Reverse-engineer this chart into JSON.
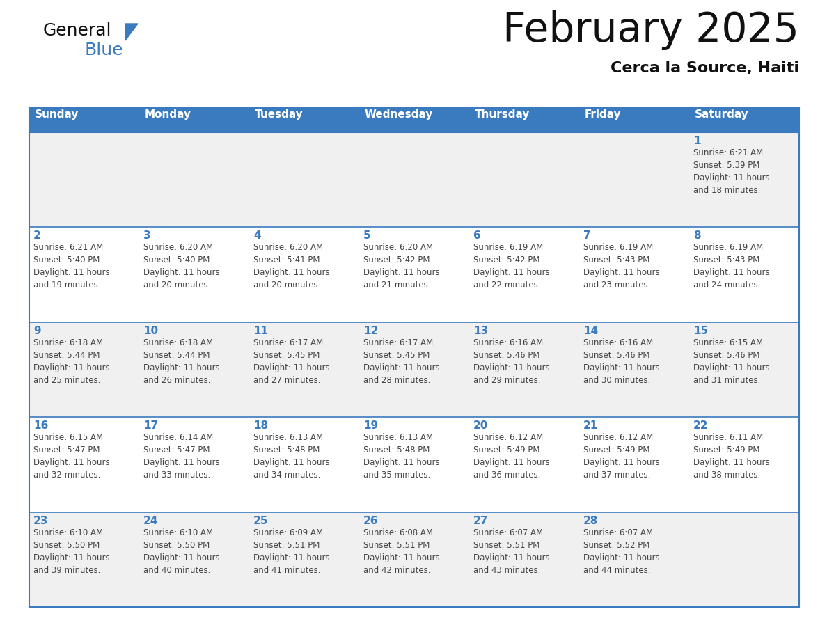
{
  "title": "February 2025",
  "subtitle": "Cerca la Source, Haiti",
  "header_bg_color": "#3a7bbf",
  "header_text_color": "#ffffff",
  "cell_bg_odd": "#f0f0f0",
  "cell_bg_even": "#ffffff",
  "day_number_color": "#3a7bbf",
  "text_color": "#444444",
  "border_color": "#3a7bbf",
  "days_of_week": [
    "Sunday",
    "Monday",
    "Tuesday",
    "Wednesday",
    "Thursday",
    "Friday",
    "Saturday"
  ],
  "calendar_data": [
    [
      null,
      null,
      null,
      null,
      null,
      null,
      {
        "day": 1,
        "sunrise": "6:21 AM",
        "sunset": "5:39 PM",
        "daylight_hours": 11,
        "daylight_minutes": 18
      }
    ],
    [
      {
        "day": 2,
        "sunrise": "6:21 AM",
        "sunset": "5:40 PM",
        "daylight_hours": 11,
        "daylight_minutes": 19
      },
      {
        "day": 3,
        "sunrise": "6:20 AM",
        "sunset": "5:40 PM",
        "daylight_hours": 11,
        "daylight_minutes": 20
      },
      {
        "day": 4,
        "sunrise": "6:20 AM",
        "sunset": "5:41 PM",
        "daylight_hours": 11,
        "daylight_minutes": 20
      },
      {
        "day": 5,
        "sunrise": "6:20 AM",
        "sunset": "5:42 PM",
        "daylight_hours": 11,
        "daylight_minutes": 21
      },
      {
        "day": 6,
        "sunrise": "6:19 AM",
        "sunset": "5:42 PM",
        "daylight_hours": 11,
        "daylight_minutes": 22
      },
      {
        "day": 7,
        "sunrise": "6:19 AM",
        "sunset": "5:43 PM",
        "daylight_hours": 11,
        "daylight_minutes": 23
      },
      {
        "day": 8,
        "sunrise": "6:19 AM",
        "sunset": "5:43 PM",
        "daylight_hours": 11,
        "daylight_minutes": 24
      }
    ],
    [
      {
        "day": 9,
        "sunrise": "6:18 AM",
        "sunset": "5:44 PM",
        "daylight_hours": 11,
        "daylight_minutes": 25
      },
      {
        "day": 10,
        "sunrise": "6:18 AM",
        "sunset": "5:44 PM",
        "daylight_hours": 11,
        "daylight_minutes": 26
      },
      {
        "day": 11,
        "sunrise": "6:17 AM",
        "sunset": "5:45 PM",
        "daylight_hours": 11,
        "daylight_minutes": 27
      },
      {
        "day": 12,
        "sunrise": "6:17 AM",
        "sunset": "5:45 PM",
        "daylight_hours": 11,
        "daylight_minutes": 28
      },
      {
        "day": 13,
        "sunrise": "6:16 AM",
        "sunset": "5:46 PM",
        "daylight_hours": 11,
        "daylight_minutes": 29
      },
      {
        "day": 14,
        "sunrise": "6:16 AM",
        "sunset": "5:46 PM",
        "daylight_hours": 11,
        "daylight_minutes": 30
      },
      {
        "day": 15,
        "sunrise": "6:15 AM",
        "sunset": "5:46 PM",
        "daylight_hours": 11,
        "daylight_minutes": 31
      }
    ],
    [
      {
        "day": 16,
        "sunrise": "6:15 AM",
        "sunset": "5:47 PM",
        "daylight_hours": 11,
        "daylight_minutes": 32
      },
      {
        "day": 17,
        "sunrise": "6:14 AM",
        "sunset": "5:47 PM",
        "daylight_hours": 11,
        "daylight_minutes": 33
      },
      {
        "day": 18,
        "sunrise": "6:13 AM",
        "sunset": "5:48 PM",
        "daylight_hours": 11,
        "daylight_minutes": 34
      },
      {
        "day": 19,
        "sunrise": "6:13 AM",
        "sunset": "5:48 PM",
        "daylight_hours": 11,
        "daylight_minutes": 35
      },
      {
        "day": 20,
        "sunrise": "6:12 AM",
        "sunset": "5:49 PM",
        "daylight_hours": 11,
        "daylight_minutes": 36
      },
      {
        "day": 21,
        "sunrise": "6:12 AM",
        "sunset": "5:49 PM",
        "daylight_hours": 11,
        "daylight_minutes": 37
      },
      {
        "day": 22,
        "sunrise": "6:11 AM",
        "sunset": "5:49 PM",
        "daylight_hours": 11,
        "daylight_minutes": 38
      }
    ],
    [
      {
        "day": 23,
        "sunrise": "6:10 AM",
        "sunset": "5:50 PM",
        "daylight_hours": 11,
        "daylight_minutes": 39
      },
      {
        "day": 24,
        "sunrise": "6:10 AM",
        "sunset": "5:50 PM",
        "daylight_hours": 11,
        "daylight_minutes": 40
      },
      {
        "day": 25,
        "sunrise": "6:09 AM",
        "sunset": "5:51 PM",
        "daylight_hours": 11,
        "daylight_minutes": 41
      },
      {
        "day": 26,
        "sunrise": "6:08 AM",
        "sunset": "5:51 PM",
        "daylight_hours": 11,
        "daylight_minutes": 42
      },
      {
        "day": 27,
        "sunrise": "6:07 AM",
        "sunset": "5:51 PM",
        "daylight_hours": 11,
        "daylight_minutes": 43
      },
      {
        "day": 28,
        "sunrise": "6:07 AM",
        "sunset": "5:52 PM",
        "daylight_hours": 11,
        "daylight_minutes": 44
      },
      null
    ]
  ],
  "logo_text_general": "General",
  "logo_text_blue": "Blue",
  "logo_triangle_color": "#3a7bbf",
  "fig_width": 11.88,
  "fig_height": 9.18,
  "dpi": 100
}
